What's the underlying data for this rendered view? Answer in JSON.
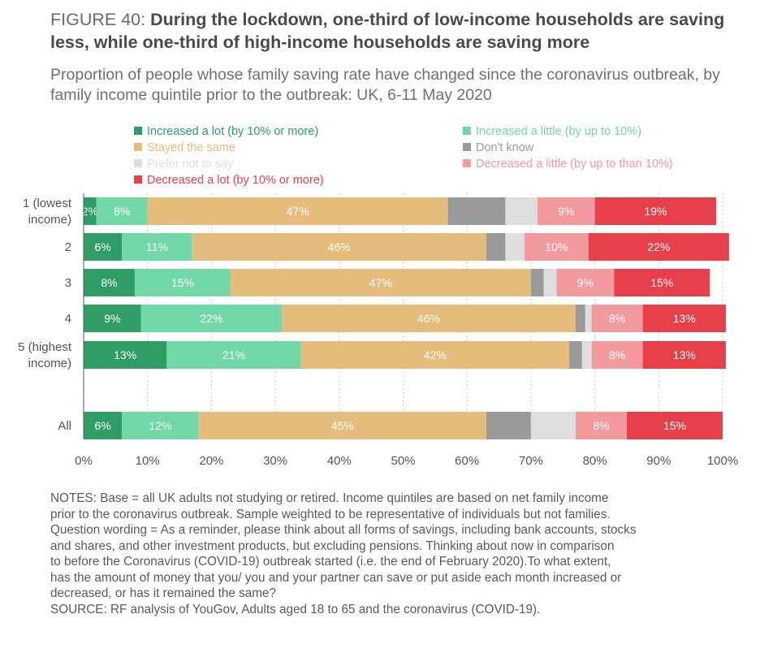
{
  "figure": {
    "label": "FIGURE 40: ",
    "headline": "During the lockdown, one-third of low-income households are saving less, while one-third of high-income households are saving more",
    "subtitle": "Proportion of people whose family saving rate have changed since the coronavirus outbreak, by family income quintile prior to the outbreak: UK, 6-11 May 2020"
  },
  "chart_data": {
    "type": "bar",
    "orientation": "horizontal",
    "stacked": true,
    "categories": [
      [
        "1 (lowest",
        "income)"
      ],
      [
        "2"
      ],
      [
        "3"
      ],
      [
        "4"
      ],
      [
        "5 (highest",
        "income)"
      ],
      [
        "All"
      ]
    ],
    "xlim": [
      0,
      100
    ],
    "xticks": [
      "0%",
      "10%",
      "20%",
      "30%",
      "40%",
      "50%",
      "60%",
      "70%",
      "80%",
      "90%",
      "100%"
    ],
    "grid": "vertical dashed",
    "legend_position": "top",
    "series": [
      {
        "name": "Increased a lot (by 10% or more)",
        "color": "#2e9e66",
        "label_color": "#ffffff",
        "values": [
          2,
          6,
          8,
          9,
          13,
          6
        ],
        "labels": [
          "2%",
          "6%",
          "8%",
          "9%",
          "13%",
          "6%"
        ]
      },
      {
        "name": "Increased a little (by up to 10%)",
        "color": "#72d8a8",
        "label_color": "#ffffff",
        "values": [
          8,
          11,
          15,
          22,
          21,
          12
        ],
        "labels": [
          "8%",
          "11%",
          "15%",
          "22%",
          "21%",
          "12%"
        ]
      },
      {
        "name": "Stayed the same",
        "color": "#e5bc7c",
        "label_color": "#ffffff",
        "values": [
          47,
          46,
          47,
          46,
          42,
          45
        ],
        "labels": [
          "47%",
          "46%",
          "47%",
          "46%",
          "42%",
          "45%"
        ]
      },
      {
        "name": "Don't know",
        "color": "#9a9a9a",
        "label_color": "#ffffff",
        "values": [
          9,
          3,
          2,
          1.5,
          2,
          7
        ],
        "labels": [
          "",
          "",
          "",
          "",
          "",
          ""
        ]
      },
      {
        "name": "Prefer not to say",
        "color": "#dedede",
        "label_color": "#ffffff",
        "values": [
          5,
          3,
          2,
          1,
          1.5,
          7
        ],
        "labels": [
          "",
          "",
          "",
          "",
          "",
          ""
        ]
      },
      {
        "name": "Decreased a little (by up to than 10%)",
        "color": "#f29a9e",
        "label_color": "#ffffff",
        "values": [
          9,
          10,
          9,
          8,
          8,
          8
        ],
        "labels": [
          "9%",
          "10%",
          "9%",
          "8%",
          "8%",
          "8%"
        ]
      },
      {
        "name": "Decreased a lot (by 10% or more)",
        "color": "#e8404a",
        "label_color": "#ffffff",
        "values": [
          19,
          22,
          15,
          13,
          13,
          15
        ],
        "labels": [
          "19%",
          "22%",
          "15%",
          "13%",
          "13%",
          "15%"
        ]
      }
    ]
  },
  "notes": [
    "NOTES: Base = all UK adults not studying or retired. Income quintiles are based on net family income",
    "prior to the coronavirus outbreak. Sample weighted to be representative of individuals but not families.",
    "Question wording = As a reminder, please think about all forms of savings, including bank accounts, stocks",
    "and shares, and other investment products, but excluding pensions. Thinking about now in comparison",
    "to before the Coronavirus (COVID-19) outbreak started (i.e. the end of February 2020).To what extent,",
    "has the amount of money that you/ you and your partner can save or put aside each month increased or",
    "decreased, or has it remained the same?",
    "SOURCE: RF analysis of YouGov, Adults aged 18 to 65 and the coronavirus (COVID-19)."
  ]
}
